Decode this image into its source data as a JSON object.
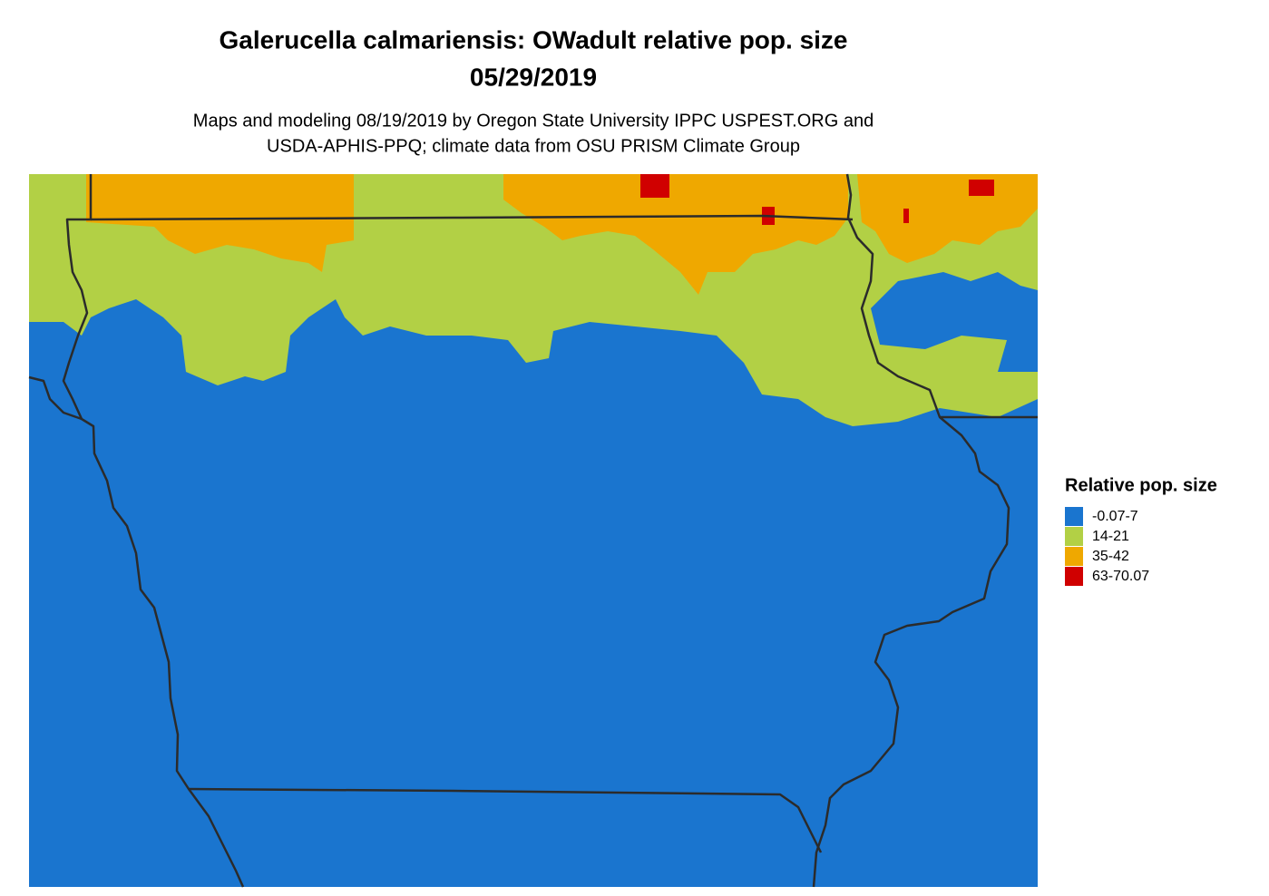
{
  "title": "Galerucella calmariensis: OWadult relative pop. size",
  "date": "05/29/2019",
  "subtitle_lines": [
    "Maps and modeling 08/19/2019 by Oregon State University IPPC USPEST.ORG and",
    "USDA-APHIS-PPQ; climate data from OSU PRISM Climate Group"
  ],
  "legend": {
    "title": "Relative pop. size",
    "items": [
      {
        "label": "-0.07-7",
        "color": "#1a75cf"
      },
      {
        "label": "14-21",
        "color": "#b2d045"
      },
      {
        "label": "35-42",
        "color": "#efa800"
      },
      {
        "label": "63-70.07",
        "color": "#d00000"
      }
    ]
  }
}
